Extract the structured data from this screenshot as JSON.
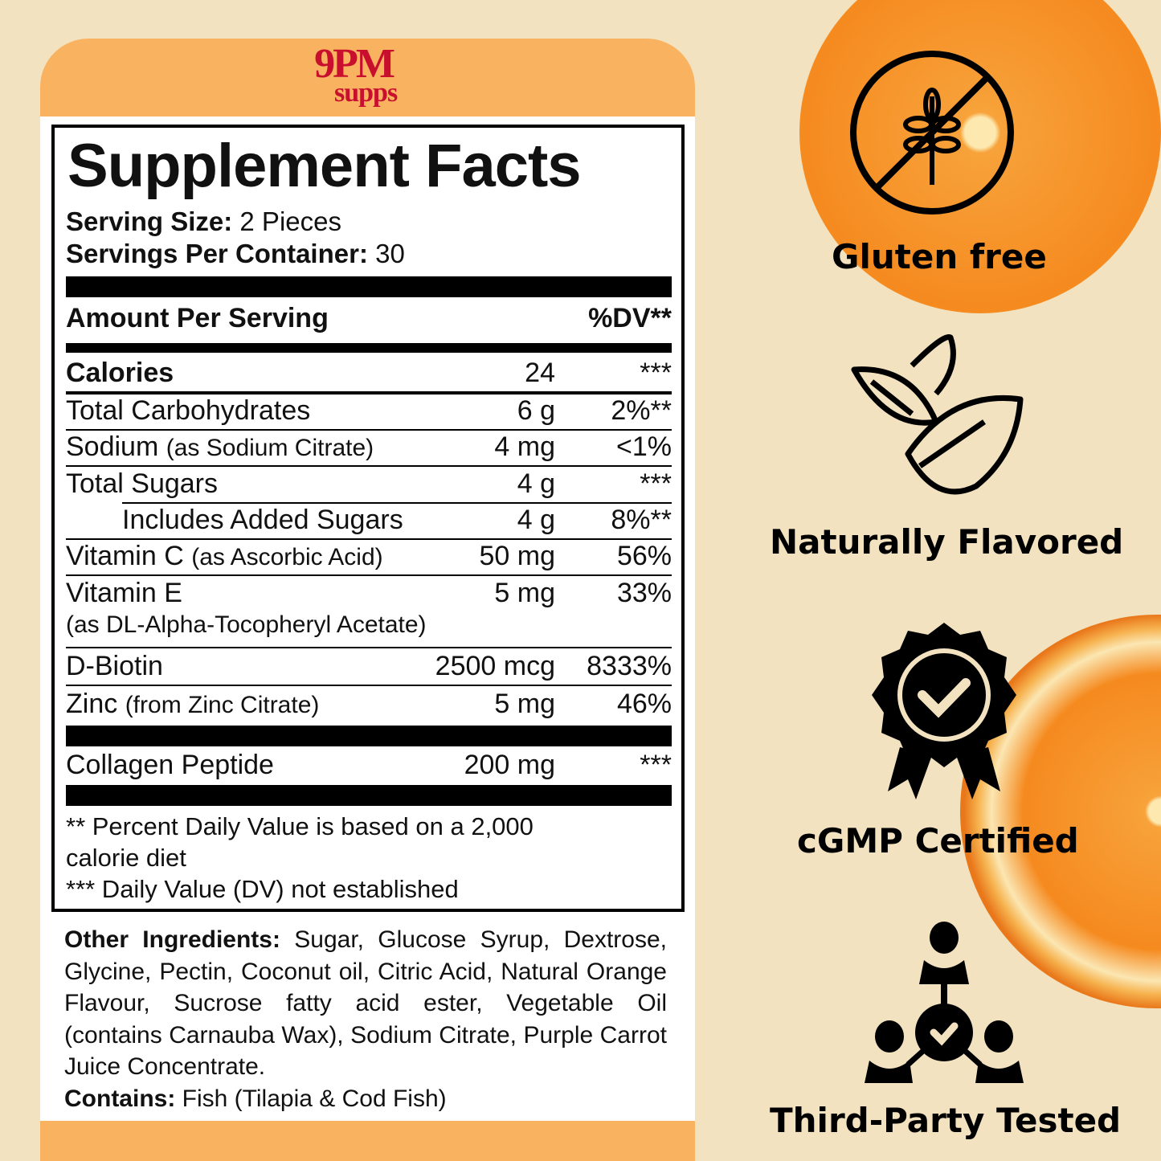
{
  "brand": {
    "line1": "9PM",
    "line2": "supps"
  },
  "facts": {
    "title": "Supplement Facts",
    "serving_size_label": "Serving Size:",
    "serving_size": "2 Pieces",
    "servings_label": "Servings Per Container:",
    "servings": "30",
    "amount_header": "Amount Per Serving",
    "dv_header": "%DV**",
    "rows": [
      {
        "name": "Calories",
        "note": "",
        "amount": "24",
        "dv": "***"
      },
      {
        "name": "Total Carbohydrates",
        "note": "",
        "amount": "6 g",
        "dv": "2%**"
      },
      {
        "name": "Sodium",
        "note": "(as Sodium Citrate)",
        "amount": "4 mg",
        "dv": "<1%"
      },
      {
        "name": "Total Sugars",
        "note": "",
        "amount": "4 g",
        "dv": "***"
      },
      {
        "name": "Includes Added Sugars",
        "note": "",
        "amount": "4 g",
        "dv": "8%**"
      },
      {
        "name": "Vitamin C",
        "note": "(as Ascorbic Acid)",
        "amount": "50 mg",
        "dv": "56%"
      },
      {
        "name": "Vitamin E",
        "note": "(as DL-Alpha-Tocopheryl Acetate)",
        "amount": "5 mg",
        "dv": "33%"
      },
      {
        "name": "D-Biotin",
        "note": "",
        "amount": "2500 mcg",
        "dv": "8333%"
      },
      {
        "name": "Zinc",
        "note": "(from Zinc Citrate)",
        "amount": "5 mg",
        "dv": "46%"
      },
      {
        "name": "Collagen Peptide",
        "note": "",
        "amount": "200 mg",
        "dv": "***"
      }
    ],
    "footnote1": "** Percent Daily Value is based on a 2,000 calorie diet",
    "footnote2": "*** Daily Value (DV) not established"
  },
  "other": {
    "label": "Other Ingredients:",
    "text": "Sugar, Glucose Syrup, Dextrose, Glycine, Pectin, Coconut oil, Citric Acid, Natural Orange Flavour, Sucrose fatty acid ester, Vegetable Oil (contains Carnauba Wax), Sodium Citrate, Purple Carrot Juice Concentrate.",
    "contains_label": "Contains:",
    "contains": "Fish (Tilapia & Cod Fish)"
  },
  "badges": [
    {
      "label": "Gluten free",
      "icon": "no-wheat-icon"
    },
    {
      "label": "Naturally Flavored",
      "icon": "leaf-icon"
    },
    {
      "label": "cGMP Certified",
      "icon": "award-badge-icon"
    },
    {
      "label": "Third-Party Tested",
      "icon": "people-network-check-icon"
    }
  ],
  "colors": {
    "background": "#f3e2bf",
    "band": "#f9b25f",
    "brand": "#c8102e"
  }
}
